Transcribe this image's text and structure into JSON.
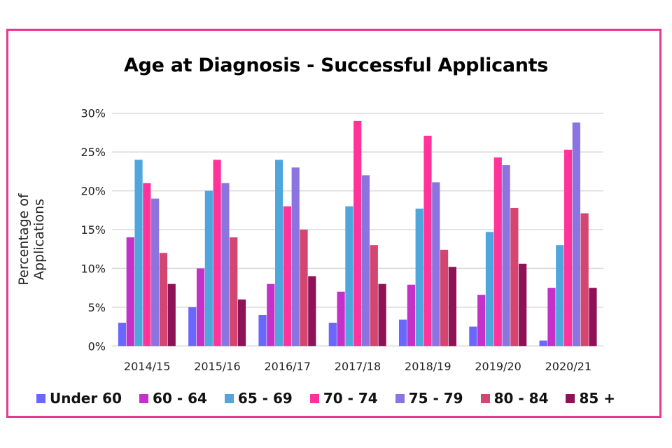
{
  "chart_data": {
    "type": "bar",
    "title": "Age at Diagnosis - Successful Applicants",
    "xlabel": "",
    "ylabel": "Percentage of Applications",
    "ylim": [
      0,
      30
    ],
    "yticks": [
      "0%",
      "5%",
      "10%",
      "15%",
      "20%",
      "25%",
      "30%"
    ],
    "grid": true,
    "legend_position": "bottom",
    "categories": [
      "2014/15",
      "2015/16",
      "2016/17",
      "2017/18",
      "2018/19",
      "2019/20",
      "2020/21"
    ],
    "series": [
      {
        "name": "Under 60",
        "color": "#6a67fe",
        "values": [
          3,
          5,
          4,
          3,
          3.4,
          2.5,
          0.7
        ]
      },
      {
        "name": "60 - 64",
        "color": "#c431c9",
        "values": [
          14,
          10,
          8,
          7,
          7.9,
          6.6,
          7.5
        ]
      },
      {
        "name": "65 - 69",
        "color": "#4fa6dc",
        "values": [
          24,
          20,
          24,
          18,
          17.7,
          14.7,
          13
        ]
      },
      {
        "name": "70 - 74",
        "color": "#ff3399",
        "values": [
          21,
          24,
          18,
          29,
          27.1,
          24.3,
          25.3
        ]
      },
      {
        "name": "75 - 79",
        "color": "#8b74e0",
        "values": [
          19,
          21,
          23,
          22,
          21.1,
          23.3,
          28.8
        ]
      },
      {
        "name": "80 - 84",
        "color": "#d44670",
        "values": [
          12,
          14,
          15,
          13,
          12.4,
          17.8,
          17.1
        ]
      },
      {
        "name": "85 +",
        "color": "#8f1257",
        "values": [
          8,
          6,
          9,
          8,
          10.2,
          10.6,
          7.5
        ]
      }
    ]
  },
  "frame_color": "#e6388f"
}
